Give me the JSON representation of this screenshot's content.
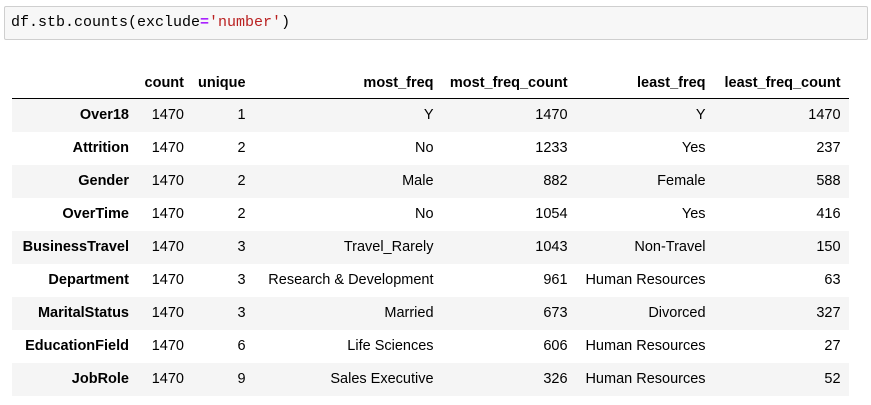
{
  "code_cell": {
    "prefix": "df.stb.counts(exclude",
    "operator": "=",
    "string": "'number'",
    "suffix": ")"
  },
  "table": {
    "index_header": "",
    "columns": [
      "count",
      "unique",
      "most_freq",
      "most_freq_count",
      "least_freq",
      "least_freq_count"
    ],
    "rows": [
      {
        "index": "Over18",
        "cells": [
          "1470",
          "1",
          "Y",
          "1470",
          "Y",
          "1470"
        ]
      },
      {
        "index": "Attrition",
        "cells": [
          "1470",
          "2",
          "No",
          "1233",
          "Yes",
          "237"
        ]
      },
      {
        "index": "Gender",
        "cells": [
          "1470",
          "2",
          "Male",
          "882",
          "Female",
          "588"
        ]
      },
      {
        "index": "OverTime",
        "cells": [
          "1470",
          "2",
          "No",
          "1054",
          "Yes",
          "416"
        ]
      },
      {
        "index": "BusinessTravel",
        "cells": [
          "1470",
          "3",
          "Travel_Rarely",
          "1043",
          "Non-Travel",
          "150"
        ]
      },
      {
        "index": "Department",
        "cells": [
          "1470",
          "3",
          "Research & Development",
          "961",
          "Human Resources",
          "63"
        ]
      },
      {
        "index": "MaritalStatus",
        "cells": [
          "1470",
          "3",
          "Married",
          "673",
          "Divorced",
          "327"
        ]
      },
      {
        "index": "EducationField",
        "cells": [
          "1470",
          "6",
          "Life Sciences",
          "606",
          "Human Resources",
          "27"
        ]
      },
      {
        "index": "JobRole",
        "cells": [
          "1470",
          "9",
          "Sales Executive",
          "326",
          "Human Resources",
          "52"
        ]
      }
    ]
  }
}
